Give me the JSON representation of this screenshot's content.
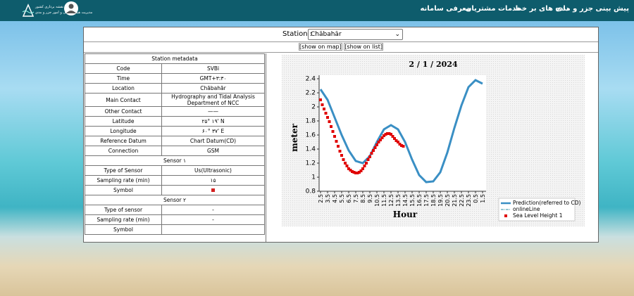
{
  "nav": {
    "logo_lines": [
      "سازمان نقشه برداری کشور",
      "مدیریت هیدروگرافی و امور جزر و مدی"
    ],
    "menu": [
      "پیش بینی جزر و مدی",
      "داده های بر خط",
      "خدمات مشتریان",
      "معرفی سامانه"
    ]
  },
  "station": {
    "label": "Station :",
    "selected": "Chābahār",
    "links": [
      "[show on map]",
      "[show on list]"
    ]
  },
  "metadata": {
    "rows": [
      {
        "header": "Station metadata"
      },
      {
        "label": "Code",
        "value": "SVBi"
      },
      {
        "label": "Time",
        "value": "GMT+۳:۳۰"
      },
      {
        "label": "Location",
        "value": "Chābahār"
      },
      {
        "label": "Main Contact",
        "value": "Hydrography and Tidal Analysis Department of NCC"
      },
      {
        "label": "Other Contact",
        "value": "——"
      },
      {
        "label": "Latitude",
        "value": "۲۵° ۱۹' N"
      },
      {
        "label": "Longitude",
        "value": "۶۰° ۳۷' E"
      },
      {
        "label": "Reference Datum",
        "value": "Chart Datum(CD)"
      },
      {
        "label": "Connection",
        "value": "GSM"
      },
      {
        "header": "Sensor ۱"
      },
      {
        "label": "Type of Sensor",
        "value": "Us(Ultrasonic)"
      },
      {
        "label": "Sampling rate (min)",
        "value": "۱۵"
      },
      {
        "label": "Symbol",
        "symbol_color": "#d42020"
      },
      {
        "header": "Sensor ۲"
      },
      {
        "label": "Type of sensor",
        "value": "-"
      },
      {
        "label": "Sampling rate (min)",
        "value": "-"
      },
      {
        "label": "Symbol"
      }
    ]
  },
  "chart_data": {
    "type": "line",
    "title": "2 / 1 / 2024",
    "ylabel": "meter",
    "xlabel": "Hour",
    "xlim": [
      2.3,
      26.0
    ],
    "ylim": [
      0.8,
      2.45
    ],
    "yticks": [
      0.8,
      1,
      1.2,
      1.4,
      1.6,
      1.8,
      2,
      2.2,
      2.4
    ],
    "xticks": [
      2.5,
      3.5,
      4.5,
      5.5,
      6.5,
      7.5,
      8.5,
      9.5,
      10.5,
      11.5,
      12.5,
      13.5,
      14.5,
      15.5,
      16.5,
      17.5,
      18.5,
      19.5,
      20.5,
      21.5,
      22.5,
      23.5,
      {
        "value": 24.5,
        "label": "0.5"
      },
      {
        "value": 25.5,
        "label": "1.5"
      }
    ],
    "series": [
      {
        "name": "Prediction(referred to CD)",
        "color": "#3a8fc4",
        "style": "line",
        "x": [
          2.5,
          3.5,
          4.5,
          5.5,
          6.5,
          7.5,
          8.5,
          9.5,
          10.5,
          11.5,
          12.5,
          13.5,
          14.5,
          15.5,
          16.5,
          17.5,
          18.5,
          19.5,
          20.5,
          21.5,
          22.5,
          23.5,
          24.5,
          25.5
        ],
        "values": [
          2.25,
          2.1,
          1.85,
          1.6,
          1.38,
          1.23,
          1.2,
          1.3,
          1.5,
          1.68,
          1.74,
          1.68,
          1.5,
          1.25,
          1.03,
          0.93,
          0.94,
          1.07,
          1.35,
          1.7,
          2.02,
          2.28,
          2.38,
          2.33
        ]
      },
      {
        "name": "onlineLine",
        "color": "#2a8fa0",
        "style": "dash-dot",
        "x": [],
        "values": []
      },
      {
        "name": "Sea Level Height 1",
        "color": "#e00000",
        "style": "square",
        "x": [
          2.5,
          2.75,
          3.0,
          3.25,
          3.5,
          3.75,
          4.0,
          4.25,
          4.5,
          4.75,
          5.0,
          5.25,
          5.5,
          5.75,
          6.0,
          6.25,
          6.5,
          6.75,
          7.0,
          7.25,
          7.5,
          7.75,
          8.0,
          8.25,
          8.5,
          8.75,
          9.0,
          9.25,
          9.5,
          9.75,
          10.0,
          10.25,
          10.5,
          10.75,
          11.0,
          11.25,
          11.5,
          11.75,
          12.0,
          12.25,
          12.5,
          12.75,
          13.0,
          13.25,
          13.5,
          13.75,
          14.0,
          14.25
        ],
        "values": [
          2.1,
          2.03,
          1.97,
          1.91,
          1.85,
          1.79,
          1.72,
          1.65,
          1.58,
          1.51,
          1.44,
          1.37,
          1.31,
          1.25,
          1.2,
          1.16,
          1.12,
          1.1,
          1.08,
          1.07,
          1.06,
          1.06,
          1.07,
          1.09,
          1.12,
          1.16,
          1.2,
          1.25,
          1.29,
          1.34,
          1.38,
          1.42,
          1.46,
          1.5,
          1.53,
          1.56,
          1.59,
          1.61,
          1.62,
          1.62,
          1.61,
          1.58,
          1.55,
          1.52,
          1.5,
          1.47,
          1.45,
          1.44
        ]
      }
    ],
    "legend": "lower right",
    "grid": false
  }
}
